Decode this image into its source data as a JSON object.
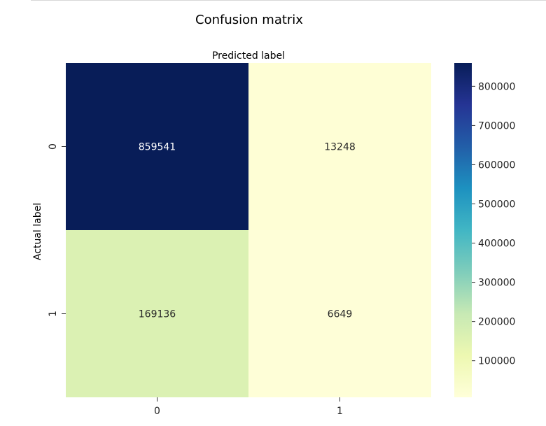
{
  "chart_data": {
    "type": "heatmap",
    "title": "Confusion matrix",
    "xlabel": "Predicted label",
    "ylabel": "Actual label",
    "x_categories": [
      "0",
      "1"
    ],
    "y_categories": [
      "0",
      "1"
    ],
    "values": [
      [
        859541,
        13248
      ],
      [
        169136,
        6649
      ]
    ],
    "cell_colors": [
      [
        "#081d58",
        "#fefed5"
      ],
      [
        "#dbf1b3",
        "#fefed7"
      ]
    ],
    "colorbar": {
      "colormap": "YlGnBu",
      "range": [
        6649,
        859541
      ],
      "ticks": [
        100000,
        200000,
        300000,
        400000,
        500000,
        600000,
        700000,
        800000
      ],
      "tick_labels": [
        "100000",
        "200000",
        "300000",
        "400000",
        "500000",
        "600000",
        "700000",
        "800000"
      ]
    }
  }
}
